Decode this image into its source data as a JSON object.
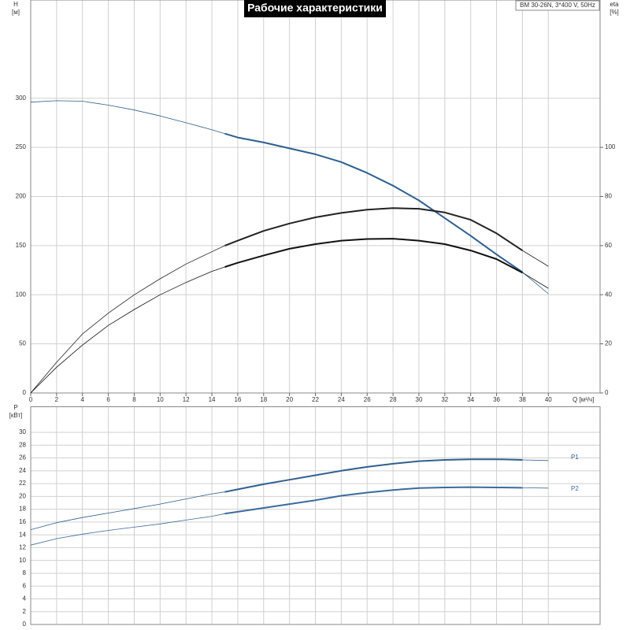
{
  "chart_data": [
    {
      "type": "line",
      "title": "Рабочие характеристики",
      "subtitle": "BM 30-26N, 3*400 V, 50Hz",
      "y_label": "H",
      "y_unit": "[м]",
      "y2_label": "eta",
      "y2_unit": "[%]",
      "x_label": "Q [м³/ч]",
      "x": [
        0,
        2,
        4,
        6,
        8,
        10,
        12,
        14,
        15,
        16,
        18,
        20,
        22,
        24,
        26,
        28,
        30,
        32,
        34,
        36,
        38,
        40
      ],
      "xlim": [
        0,
        44
      ],
      "xticks": [
        0,
        2,
        4,
        6,
        8,
        10,
        12,
        14,
        16,
        18,
        20,
        22,
        24,
        26,
        28,
        30,
        32,
        34,
        36,
        38,
        40
      ],
      "ylim": [
        0,
        400
      ],
      "yticks": [
        0,
        50,
        100,
        150,
        200,
        250,
        300
      ],
      "y2lim": [
        0,
        160
      ],
      "y2ticks": [
        0,
        20,
        40,
        60,
        80,
        100
      ],
      "grid": true,
      "bold_range": [
        15,
        38
      ],
      "series": [
        {
          "color": "#2f5f8f",
          "values": [
            296,
            297.5,
            297,
            293,
            288,
            282,
            275,
            268,
            264,
            260,
            255,
            249,
            243,
            235,
            224,
            211,
            196,
            178,
            160,
            141,
            123,
            101
          ]
        },
        {
          "color": "#222222",
          "axis": "y2",
          "values": [
            0,
            12.5,
            24,
            32.5,
            40,
            46.5,
            52.5,
            57.5,
            60,
            62,
            66,
            69,
            71.5,
            73.3,
            74.6,
            75.3,
            75,
            73.5,
            70.5,
            65,
            58,
            51.6
          ]
        },
        {
          "color": "#111111",
          "axis": "y2",
          "values": [
            0,
            10.5,
            19.5,
            27.5,
            34,
            40,
            45,
            49.5,
            51.3,
            53,
            56,
            58.7,
            60.6,
            62,
            62.7,
            62.8,
            62,
            60.6,
            58,
            54.5,
            49,
            42.6
          ]
        }
      ]
    },
    {
      "type": "line",
      "y_label": "P",
      "y_unit": "[кВт]",
      "x": [
        0,
        2,
        4,
        6,
        8,
        10,
        12,
        14,
        15,
        16,
        18,
        20,
        22,
        24,
        26,
        28,
        30,
        32,
        34,
        36,
        38,
        40
      ],
      "xlim": [
        0,
        44
      ],
      "ylim": [
        0,
        34
      ],
      "yticks": [
        0,
        2,
        4,
        6,
        8,
        10,
        12,
        14,
        16,
        18,
        20,
        22,
        24,
        26,
        28,
        30
      ],
      "grid": true,
      "bold_range": [
        15,
        38
      ],
      "series": [
        {
          "name": "P1",
          "color": "#2f5f8f",
          "values": [
            14.8,
            15.9,
            16.7,
            17.4,
            18.1,
            18.8,
            19.6,
            20.4,
            20.7,
            21.1,
            21.9,
            22.6,
            23.3,
            24.0,
            24.6,
            25.1,
            25.5,
            25.7,
            25.8,
            25.8,
            25.7,
            25.6
          ]
        },
        {
          "name": "P2",
          "color": "#3d6a9c",
          "values": [
            12.4,
            13.4,
            14.1,
            14.7,
            15.2,
            15.7,
            16.3,
            16.9,
            17.3,
            17.6,
            18.2,
            18.8,
            19.4,
            20.1,
            20.6,
            21.0,
            21.3,
            21.4,
            21.45,
            21.4,
            21.35,
            21.3
          ]
        }
      ]
    }
  ]
}
